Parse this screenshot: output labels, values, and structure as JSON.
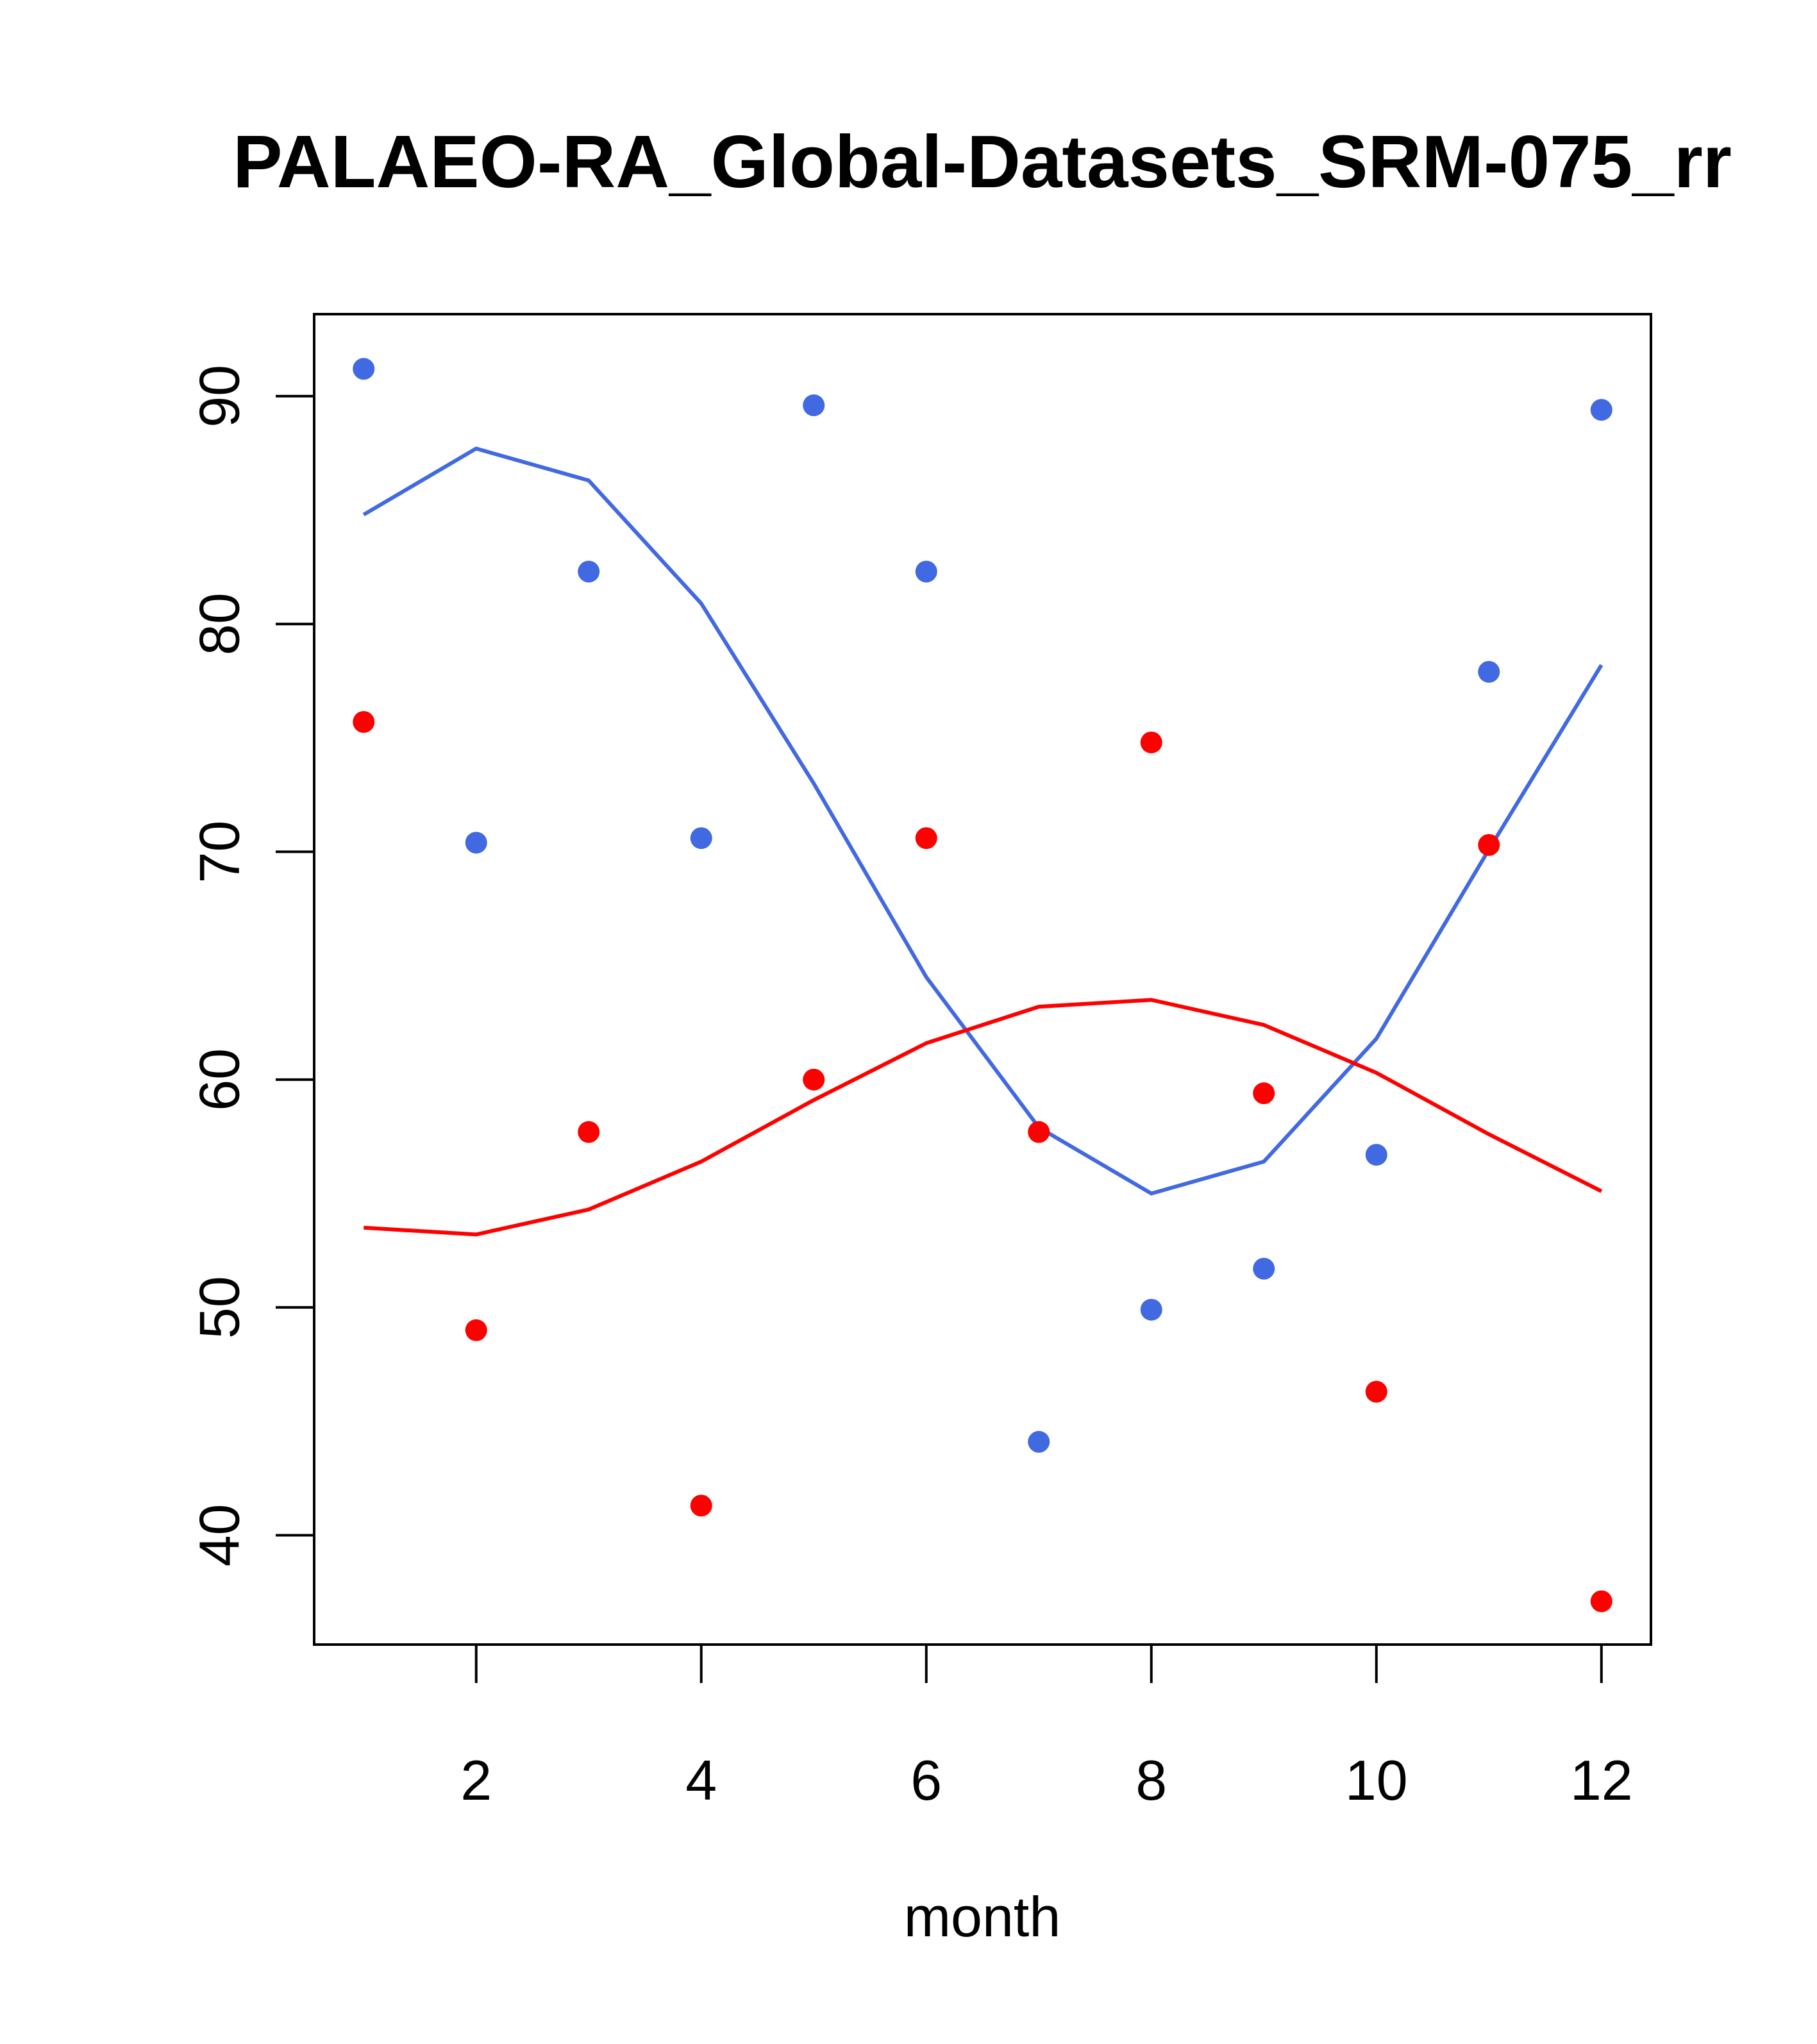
{
  "chart_data": {
    "type": "line",
    "title": "PALAEO-RA_Global-Datasets_SRM-075_rr",
    "xlabel": "month",
    "ylabel": "",
    "xlim": [
      0.56,
      12.44
    ],
    "ylim": [
      35.2,
      93.6
    ],
    "x_ticks": [
      2,
      4,
      6,
      8,
      10,
      12
    ],
    "y_ticks": [
      40,
      50,
      60,
      70,
      80,
      90
    ],
    "x": [
      1,
      2,
      3,
      4,
      5,
      6,
      7,
      8,
      9,
      10,
      11,
      12
    ],
    "series": [
      {
        "name": "blue line",
        "kind": "line",
        "color": "#4169E1",
        "values": [
          84.8,
          87.7,
          86.3,
          80.9,
          73.0,
          64.5,
          57.9,
          55.0,
          56.4,
          61.8,
          70.1,
          78.2
        ]
      },
      {
        "name": "red line",
        "kind": "line",
        "color": "#FF0000",
        "values": [
          53.5,
          53.2,
          54.3,
          56.4,
          59.1,
          61.6,
          63.2,
          63.5,
          62.4,
          60.3,
          57.6,
          55.1
        ]
      },
      {
        "name": "blue points",
        "kind": "scatter",
        "color": "#4169E1",
        "values": [
          91.2,
          70.4,
          82.3,
          70.6,
          89.6,
          82.3,
          44.1,
          49.9,
          51.7,
          56.7,
          77.9,
          89.4
        ]
      },
      {
        "name": "red points",
        "kind": "scatter",
        "color": "#FF0000",
        "values": [
          75.7,
          49.0,
          57.7,
          41.3,
          60.0,
          70.6,
          57.7,
          74.8,
          59.4,
          46.3,
          70.3,
          37.1
        ]
      }
    ]
  }
}
